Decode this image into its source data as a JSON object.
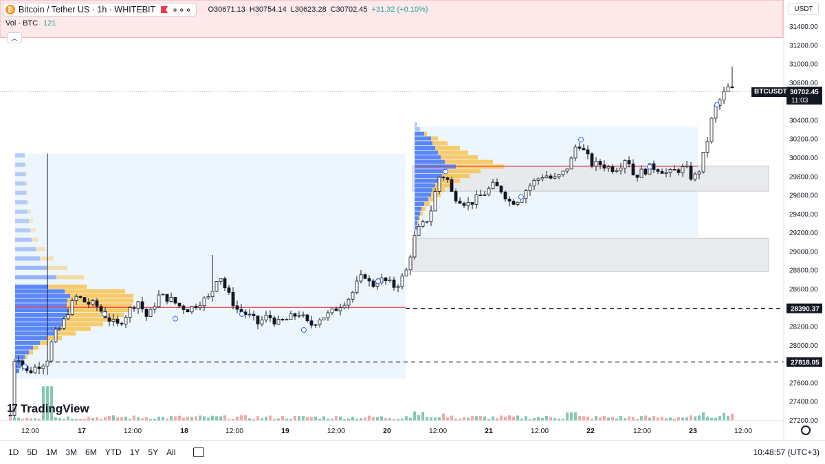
{
  "header": {
    "symbol_title": "Bitcoin / Tether US · 1h · WHITEBIT",
    "coin_glyph": "₿",
    "ohlc": {
      "open": "O30671.13",
      "high": "H30754.14",
      "low": "L30623.28",
      "close": "C30702.45",
      "change": "+31.32 (+0.10%)"
    },
    "volume_label": "Vol · BTC",
    "volume_value": "121",
    "currency": "USDT"
  },
  "price_axis": {
    "ticks": [
      "31400.00",
      "31200.00",
      "31000.00",
      "30800.00",
      "30600.00",
      "30400.00",
      "30200.00",
      "30000.00",
      "29800.00",
      "29600.00",
      "29400.00",
      "29200.00",
      "29000.00",
      "28800.00",
      "28600.00",
      "28400.00",
      "28200.00",
      "28000.00",
      "27800.00",
      "27600.00",
      "27400.00",
      "27200.00"
    ],
    "last_price": "30702.45",
    "countdown": "11:03",
    "ticker": "BTCUSDT",
    "level_1": "28390.37",
    "level_2": "27818.05"
  },
  "time_axis": {
    "labels": [
      "12:00",
      "17",
      "12:00",
      "18",
      "12:00",
      "19",
      "12:00",
      "20",
      "12:00",
      "21",
      "12:00",
      "22",
      "12:00",
      "23",
      "12:00"
    ]
  },
  "branding": {
    "name": "TradingView"
  },
  "bottom_bar": {
    "ranges": [
      "1D",
      "5D",
      "1M",
      "3M",
      "6M",
      "YTD",
      "1Y",
      "5Y",
      "All"
    ],
    "clock": "10:48:57 (UTC+3)"
  },
  "colors": {
    "up": "#26a69a",
    "down": "#ef5350",
    "candle_body_up": "#ffffff",
    "candle_body_down": "#131722",
    "poc_line": "#f23645",
    "profile_up": "#f7c55a",
    "profile_down": "#4a7bf7",
    "range_fill": "#e8f4fd",
    "zone_fill": "#e6e7ea"
  },
  "chart_data": {
    "type": "candlestick",
    "symbol": "BTCUSDT",
    "timeframe": "1h",
    "ylim": [
      27150,
      31550
    ],
    "x_dates": [
      "16 12:00",
      "17",
      "17 12:00",
      "18",
      "18 12:00",
      "19",
      "19 12:00",
      "20",
      "20 12:00",
      "21",
      "21 12:00",
      "22",
      "22 12:00",
      "23",
      "23 12:00"
    ],
    "horizontal_levels": [
      28390.37,
      27818.05
    ],
    "supply_zone": [
      31280,
      31550
    ],
    "gray_zones": [
      [
        29640,
        29910
      ],
      [
        28780,
        29140
      ]
    ],
    "volume_profiles": [
      {
        "from": "16 03:00",
        "to": "20 09:00",
        "poc": 28400
      },
      {
        "from": "20 11:00",
        "to": "23 01:00",
        "poc": 29900
      }
    ],
    "last_close": 30702.45
  }
}
